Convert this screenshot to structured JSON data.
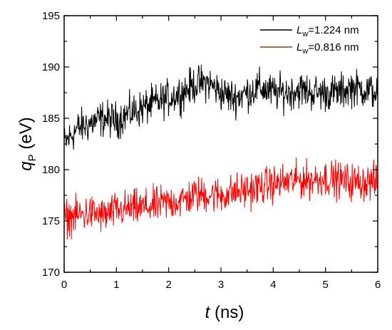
{
  "chart_data": {
    "type": "line",
    "xlabel": {
      "var": "t",
      "unit": " (ns)"
    },
    "ylabel": {
      "var": "q",
      "sub": "P",
      "unit": " (eV)"
    },
    "xlim": [
      0,
      6
    ],
    "ylim": [
      170,
      195
    ],
    "xticks": [
      "0",
      "1",
      "2",
      "3",
      "4",
      "5",
      "6"
    ],
    "yticks": [
      "170",
      "175",
      "180",
      "185",
      "190",
      "195"
    ],
    "legend_position": "top-right",
    "grid": false,
    "series": [
      {
        "name": {
          "var": "L",
          "sub": "w",
          "value": "=1.224 nm"
        },
        "color": "#000000",
        "x": [
          0,
          0.25,
          0.5,
          0.75,
          1.0,
          1.25,
          1.5,
          1.75,
          2.0,
          2.25,
          2.5,
          2.75,
          3.0,
          3.25,
          3.5,
          3.75,
          4.0,
          4.25,
          4.5,
          4.75,
          5.0,
          5.25,
          5.5,
          5.75,
          6.0
        ],
        "y": [
          182.5,
          184,
          184.5,
          185,
          184.8,
          185.5,
          186,
          186.5,
          187,
          187.5,
          188.3,
          188.5,
          187.5,
          187,
          187.5,
          188,
          187.5,
          187.5,
          187.8,
          187.5,
          187.5,
          187.5,
          188,
          187.8,
          187.5
        ],
        "noise_amplitude": 1.6
      },
      {
        "name": {
          "var": "L",
          "sub": "w",
          "value": "=0.816 nm"
        },
        "color": "#ff0000",
        "legend_color": "#8b3a1e",
        "x": [
          0,
          0.25,
          0.5,
          0.75,
          1.0,
          1.25,
          1.5,
          1.75,
          2.0,
          2.25,
          2.5,
          2.75,
          3.0,
          3.25,
          3.5,
          3.75,
          4.0,
          4.25,
          4.5,
          4.75,
          5.0,
          5.25,
          5.5,
          5.75,
          6.0
        ],
        "y": [
          175.3,
          175.5,
          175.8,
          175.5,
          176,
          176.2,
          176.3,
          176.5,
          176.8,
          177,
          177.5,
          177.6,
          177.5,
          177.8,
          178,
          178.3,
          178.6,
          178.8,
          179,
          179,
          179.2,
          179,
          178.8,
          178.8,
          178.8
        ],
        "noise_amplitude": 1.6
      }
    ]
  }
}
